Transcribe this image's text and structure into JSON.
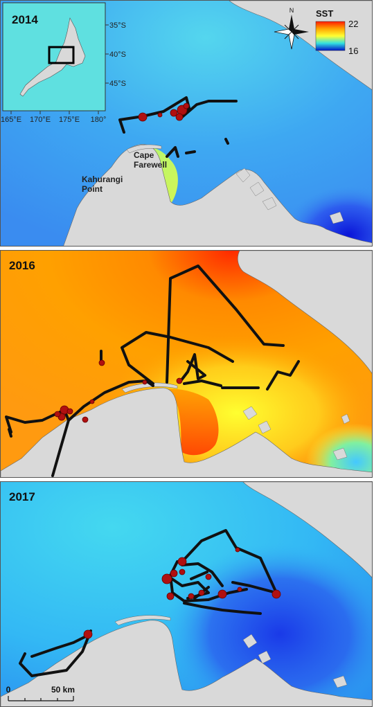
{
  "panels": [
    {
      "year": "2014",
      "sst": "cool"
    },
    {
      "year": "2016",
      "sst": "warm"
    },
    {
      "year": "2017",
      "sst": "cool"
    }
  ],
  "inset": {
    "lat_ticks": [
      "35°S",
      "40°S",
      "45°S"
    ],
    "lon_ticks": [
      "165°E",
      "170°E",
      "175°E",
      "180°"
    ]
  },
  "legend": {
    "title": "SST",
    "max_label": "22",
    "min_label": "16",
    "colors": [
      "#ff1a00",
      "#ffa500",
      "#ffff33",
      "#33e0e0",
      "#0014c8"
    ]
  },
  "north_arrow": {
    "label": "N"
  },
  "place_labels": {
    "cape": [
      "Cape",
      "Farewell"
    ],
    "kahurangi": [
      "Kahurangi",
      "Point"
    ]
  },
  "scale_bar": {
    "zero_label": "0",
    "end_label": "50 km"
  },
  "colors": {
    "land": "#d9d9d9",
    "track": "#111111",
    "point": "#b01010",
    "inset_sea": "#5fe0e0"
  }
}
